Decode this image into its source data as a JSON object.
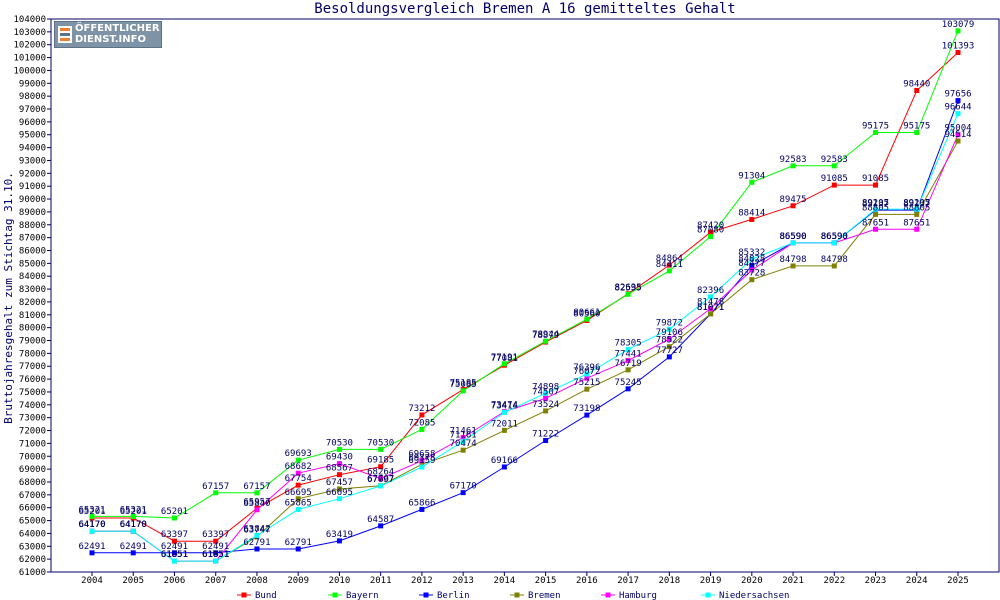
{
  "chart_data": {
    "type": "line",
    "title": "Besoldungsvergleich Bremen A 16 gemitteltes Gehalt",
    "ylabel": "Bruttojahresgehalt zum Stichtag 31.10.",
    "xlabel": "",
    "ylim": [
      61000,
      104000
    ],
    "ystep": 1000,
    "grid": false,
    "legend_position": "bottom",
    "categories": [
      "2004",
      "2005",
      "2006",
      "2007",
      "2008",
      "2009",
      "2010",
      "2011",
      "2012",
      "2013",
      "2014",
      "2015",
      "2016",
      "2017",
      "2018",
      "2019",
      "2020",
      "2021",
      "2022",
      "2023",
      "2024",
      "2025"
    ],
    "series": [
      {
        "name": "Bund",
        "color": "#ff0000",
        "values": [
          65201,
          65201,
          63397,
          63397,
          65957,
          67754,
          68567,
          69185,
          73212,
          75185,
          77081,
          78879,
          80560,
          82635,
          84864,
          87420,
          88414,
          89475,
          91085,
          91085,
          98440,
          101393
        ]
      },
      {
        "name": "Bayern",
        "color": "#00ff00",
        "values": [
          65321,
          65321,
          65201,
          67157,
          67157,
          69693,
          70530,
          70530,
          72085,
          75085,
          77191,
          78944,
          80661,
          82595,
          84411,
          87080,
          91304,
          92583,
          92583,
          95175,
          95175,
          103079
        ]
      },
      {
        "name": "Berlin",
        "color": "#0000ff",
        "values": [
          62491,
          62491,
          62491,
          62491,
          62791,
          62791,
          63419,
          64587,
          65866,
          67170,
          69166,
          71222,
          73198,
          75245,
          77727,
          81071,
          84828,
          86590,
          86590,
          89137,
          89137,
          97656
        ]
      },
      {
        "name": "Bremen",
        "color": "#808000",
        "values": [
          64170,
          64170,
          61851,
          61851,
          63747,
          66695,
          67457,
          67707,
          69378,
          70474,
          72011,
          73524,
          75215,
          76719,
          78522,
          81071,
          83728,
          84798,
          84798,
          88805,
          88805,
          94514
        ]
      },
      {
        "name": "Hamburg",
        "color": "#ff00ff",
        "values": [
          64170,
          64170,
          61851,
          61851,
          65840,
          68682,
          69430,
          68264,
          69658,
          71461,
          73474,
          74507,
          76072,
          77441,
          79106,
          81478,
          84477,
          86590,
          86590,
          87651,
          87651,
          95004
        ]
      },
      {
        "name": "Niedersachsen",
        "color": "#00ffff",
        "values": [
          64170,
          64170,
          61851,
          61851,
          63842,
          65865,
          66695,
          67697,
          69159,
          71161,
          73414,
          74898,
          76396,
          78305,
          79872,
          82396,
          85332,
          86590,
          86590,
          89205,
          89205,
          96644
        ]
      }
    ]
  },
  "logo": {
    "line1": "ÖFFENTLICHER",
    "line2": "DIENST.INFO"
  }
}
